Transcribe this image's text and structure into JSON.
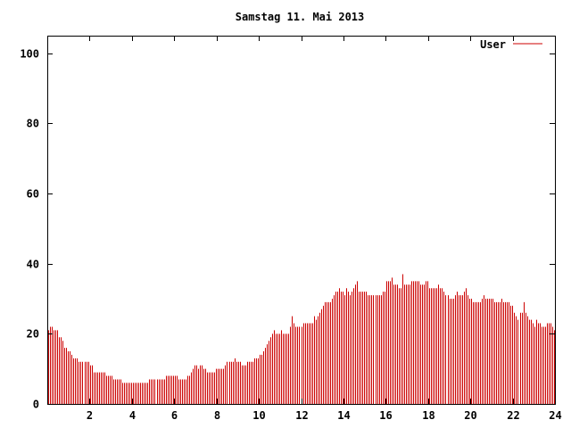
{
  "chart_data": {
    "type": "bar",
    "title": "Samstag 11. Mai 2013",
    "xlabel": "",
    "ylabel": "",
    "xlim": [
      0,
      24
    ],
    "ylim": [
      0,
      105
    ],
    "x_ticks": [
      "2",
      "4",
      "6",
      "8",
      "10",
      "12",
      "14",
      "16",
      "18",
      "20",
      "22",
      "24"
    ],
    "y_ticks": [
      "0",
      "20",
      "40",
      "60",
      "80",
      "100"
    ],
    "grid": false,
    "legend_position": "top-right",
    "series_color": "#cc0000",
    "series": [
      {
        "name": "User",
        "values": [
          21,
          22,
          22,
          21,
          21,
          21,
          19,
          19,
          18,
          16,
          16,
          15,
          15,
          14,
          13,
          13,
          13,
          12,
          12,
          12,
          12,
          12,
          12,
          11,
          11,
          9,
          9,
          9,
          9,
          9,
          9,
          9,
          8,
          8,
          8,
          8,
          7,
          7,
          7,
          7,
          7,
          6,
          6,
          6,
          6,
          6,
          6,
          6,
          6,
          6,
          6,
          6,
          6,
          6,
          6,
          6,
          7,
          7,
          7,
          7,
          7,
          7,
          7,
          7,
          7,
          8,
          8,
          8,
          8,
          8,
          8,
          8,
          7,
          7,
          7,
          7,
          7,
          8,
          8,
          9,
          10,
          11,
          11,
          10,
          11,
          11,
          10,
          10,
          9,
          9,
          9,
          9,
          9,
          10,
          10,
          10,
          10,
          10,
          11,
          12,
          12,
          12,
          12,
          13,
          12,
          12,
          12,
          11,
          11,
          11,
          12,
          12,
          12,
          12,
          13,
          13,
          13,
          14,
          14,
          15,
          16,
          17,
          18,
          19,
          20,
          21,
          20,
          20,
          20,
          21,
          20,
          20,
          20,
          20,
          22,
          25,
          23,
          22,
          22,
          22,
          22,
          23,
          23,
          23,
          23,
          23,
          23,
          25,
          24,
          25,
          26,
          27,
          28,
          29,
          29,
          29,
          29,
          30,
          31,
          32,
          32,
          33,
          32,
          32,
          31,
          33,
          32,
          31,
          32,
          33,
          34,
          35,
          32,
          32,
          32,
          32,
          32,
          31,
          31,
          31,
          31,
          31,
          31,
          31,
          31,
          32,
          32,
          35,
          35,
          35,
          36,
          34,
          34,
          34,
          33,
          33,
          37,
          34,
          34,
          34,
          34,
          35,
          35,
          35,
          35,
          35,
          34,
          34,
          34,
          35,
          35,
          33,
          33,
          33,
          33,
          33,
          34,
          33,
          33,
          32,
          31,
          31,
          30,
          30,
          30,
          31,
          32,
          31,
          31,
          31,
          32,
          33,
          31,
          30,
          30,
          29,
          29,
          29,
          29,
          29,
          30,
          31,
          30,
          30,
          30,
          30,
          30,
          29,
          29,
          29,
          29,
          30,
          29,
          29,
          29,
          29,
          28,
          28,
          26,
          25,
          24,
          26,
          26,
          29,
          26,
          25,
          24,
          24,
          23,
          22,
          24,
          23,
          23,
          22,
          22,
          22,
          23,
          23,
          23,
          22,
          21
        ]
      }
    ]
  }
}
